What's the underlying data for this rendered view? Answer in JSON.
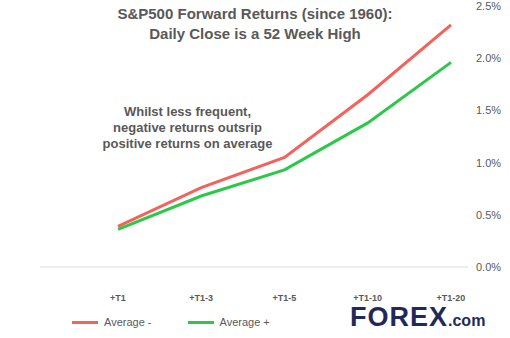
{
  "chart_data": {
    "type": "line",
    "title": "S&P500 Forward Returns (since 1960):",
    "subtitle": "Daily Close is a 52 Week High",
    "annotation": [
      "Whilst less frequent,",
      "negative returns outsrip",
      "positive returns on average"
    ],
    "logo": "FOREX.com",
    "categories": [
      "+T1",
      "+T1-3",
      "+T1-5",
      "+T1-10",
      "+T1-20"
    ],
    "series": [
      {
        "name": "Average -",
        "color": "#f4625c",
        "values": [
          0.39,
          0.76,
          1.05,
          1.65,
          2.32
        ]
      },
      {
        "name": "Average +",
        "color": "#2cc84a",
        "values": [
          0.36,
          0.68,
          0.93,
          1.38,
          1.96
        ]
      }
    ],
    "ylim": [
      0,
      2.5
    ],
    "yticks": [
      {
        "value": 0,
        "label": "0.0%"
      },
      {
        "value": 0.5,
        "label": "0.5%"
      },
      {
        "value": 1,
        "label": "1.0%"
      },
      {
        "value": 1.5,
        "label": "1.5%"
      },
      {
        "value": 2,
        "label": "2.0%"
      },
      {
        "value": 2.5,
        "label": "2.5%"
      }
    ],
    "grid": false,
    "legend": "bottom"
  }
}
